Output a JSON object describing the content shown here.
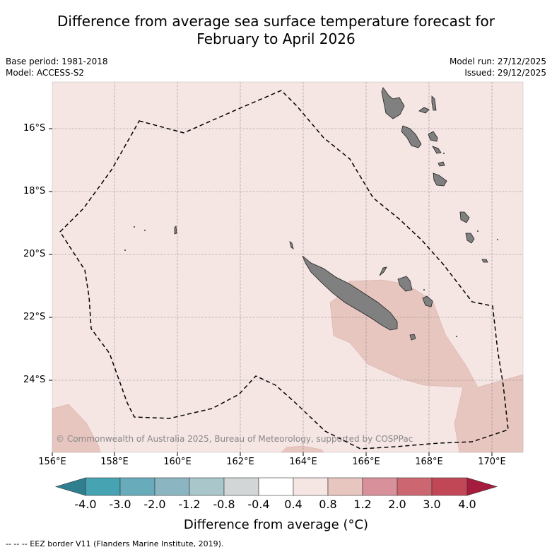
{
  "title_line1": "Difference from average sea surface temperature forecast for",
  "title_line2": "February to April 2026",
  "base_period": "Base period: 1981-2018",
  "model": "Model: ACCESS-S2",
  "model_run": "Model run: 27/12/2025",
  "issued": "Issued: 29/12/2025",
  "copyright": "© Commonwealth of Australia 2025, Bureau of Meteorology, supported by COSPPac",
  "lat_labels": [
    "16°S",
    "18°S",
    "20°S",
    "22°S",
    "24°S"
  ],
  "lon_labels": [
    "156°E",
    "158°E",
    "160°E",
    "162°E",
    "164°E",
    "166°E",
    "168°E",
    "170°E"
  ],
  "colorbar": {
    "title": "Difference from average (°C)",
    "labels": [
      "-4.0",
      "-3.0",
      "-2.0",
      "-1.2",
      "-0.8",
      "-0.4",
      "0.4",
      "0.8",
      "1.2",
      "2.0",
      "3.0",
      "4.0"
    ],
    "colors": [
      "#2f7f8f",
      "#46a3b2",
      "#68abbb",
      "#8bb6c1",
      "#a9c7ca",
      "#d3d6d6",
      "#ffffff",
      "#f5e6e4",
      "#e8c6c0",
      "#d8919a",
      "#cc6772",
      "#c14656",
      "#a61c3c"
    ]
  },
  "footnote": "--  --  -- EEZ border V11 (Flanders Marine Institute, 2019).",
  "colors": {
    "background_anomaly": "#f5e6e4",
    "warm_anomaly": "#e8c6c0",
    "land": "#808080"
  }
}
